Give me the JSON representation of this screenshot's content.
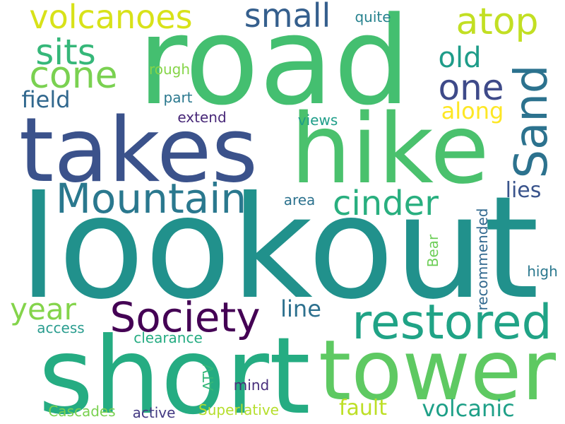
{
  "words": [
    {
      "text": "road",
      "color": "#44bf70",
      "vertical": false
    },
    {
      "text": "lookout",
      "color": "#21918c",
      "vertical": false
    },
    {
      "text": "short",
      "color": "#25ac82",
      "vertical": false
    },
    {
      "text": "hike",
      "color": "#4ac16d",
      "vertical": false
    },
    {
      "text": "takes",
      "color": "#3b528b",
      "vertical": false
    },
    {
      "text": "tower",
      "color": "#5ec962",
      "vertical": false
    },
    {
      "text": "restored",
      "color": "#20a386",
      "vertical": false
    },
    {
      "text": "Mountain",
      "color": "#2a788e",
      "vertical": false
    },
    {
      "text": "Society",
      "color": "#440154",
      "vertical": false
    },
    {
      "text": "Sand",
      "color": "#2c728e",
      "vertical": true
    },
    {
      "text": "volcanoes",
      "color": "#d8e219",
      "vertical": false
    },
    {
      "text": "atop",
      "color": "#c2df23",
      "vertical": false
    },
    {
      "text": "small",
      "color": "#355f8d",
      "vertical": false
    },
    {
      "text": "sits",
      "color": "#35b779",
      "vertical": false
    },
    {
      "text": "cone",
      "color": "#7ad151",
      "vertical": false
    },
    {
      "text": "one",
      "color": "#3e4a89",
      "vertical": false
    },
    {
      "text": "old",
      "color": "#1e9c89",
      "vertical": false
    },
    {
      "text": "cinder",
      "color": "#29af7f",
      "vertical": false
    },
    {
      "text": "year",
      "color": "#84d44b",
      "vertical": false
    },
    {
      "text": "volcanic",
      "color": "#1fa088",
      "vertical": false
    },
    {
      "text": "fault",
      "color": "#bddf26",
      "vertical": false
    },
    {
      "text": "line",
      "color": "#2d708e",
      "vertical": false
    },
    {
      "text": "field",
      "color": "#31688e",
      "vertical": false
    },
    {
      "text": "along",
      "color": "#fde725",
      "vertical": false
    },
    {
      "text": "lies",
      "color": "#3a548c",
      "vertical": false
    },
    {
      "text": "quite",
      "color": "#26828e",
      "vertical": false
    },
    {
      "text": "rough",
      "color": "#86d549",
      "vertical": false
    },
    {
      "text": "part",
      "color": "#2a788e",
      "vertical": false
    },
    {
      "text": "extend",
      "color": "#482878",
      "vertical": false
    },
    {
      "text": "views",
      "color": "#1f9e89",
      "vertical": false
    },
    {
      "text": "area",
      "color": "#2c728e",
      "vertical": false
    },
    {
      "text": "recommended",
      "color": "#31688e",
      "vertical": true
    },
    {
      "text": "Bear",
      "color": "#6ece58",
      "vertical": true
    },
    {
      "text": "high",
      "color": "#2a788e",
      "vertical": false
    },
    {
      "text": "access",
      "color": "#2a9d8f",
      "vertical": false
    },
    {
      "text": "clearance",
      "color": "#25ac82",
      "vertical": false
    },
    {
      "text": "ATV",
      "color": "#35b779",
      "vertical": true
    },
    {
      "text": "mind",
      "color": "#472d7b",
      "vertical": false
    },
    {
      "text": "Cascades",
      "color": "#7ad151",
      "vertical": false
    },
    {
      "text": "active",
      "color": "#443a83",
      "vertical": false
    },
    {
      "text": "Superlative",
      "color": "#b5de2b",
      "vertical": false
    }
  ]
}
